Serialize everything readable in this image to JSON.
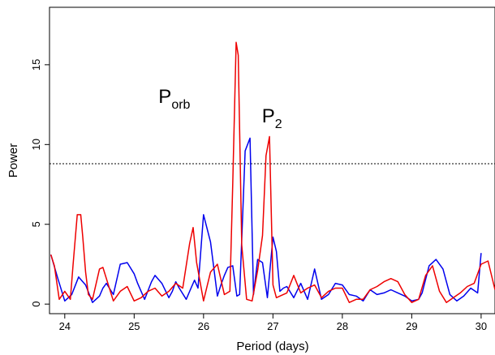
{
  "chart_data": {
    "type": "line",
    "xlabel": "Period (days)",
    "ylabel": "Power",
    "xlim": [
      23.78,
      30.2
    ],
    "ylim": [
      -0.6,
      18.6
    ],
    "x_ticks": [
      24,
      25,
      26,
      27,
      28,
      29,
      30
    ],
    "y_ticks": [
      0,
      5,
      10,
      15
    ],
    "grid": false,
    "threshold": {
      "value": 8.8,
      "style": "dotted",
      "color": "#000000"
    },
    "annotations": [
      {
        "base": "P",
        "sub": "orb",
        "x": 25.35,
        "y": 12.6
      },
      {
        "base": "P",
        "sub": "2",
        "x": 26.84,
        "y": 11.4
      }
    ],
    "series": [
      {
        "color": "#0000ee",
        "x": [
          23.8,
          23.9,
          24.0,
          24.1,
          24.2,
          24.3,
          24.4,
          24.5,
          24.55,
          24.6,
          24.7,
          24.8,
          24.9,
          25.0,
          25.05,
          25.15,
          25.25,
          25.3,
          25.4,
          25.5,
          25.55,
          25.6,
          25.65,
          25.75,
          25.82,
          25.87,
          25.92,
          26.0,
          26.1,
          26.2,
          26.25,
          26.3,
          26.35,
          26.42,
          26.48,
          26.52,
          26.6,
          26.67,
          26.72,
          26.78,
          26.85,
          26.92,
          27.0,
          27.05,
          27.1,
          27.15,
          27.2,
          27.3,
          27.4,
          27.5,
          27.6,
          27.7,
          27.8,
          27.9,
          28.0,
          28.1,
          28.2,
          28.3,
          28.4,
          28.5,
          28.6,
          28.7,
          28.8,
          28.9,
          29.0,
          29.1,
          29.15,
          29.25,
          29.35,
          29.45,
          29.55,
          29.65,
          29.75,
          29.85,
          29.95,
          30.0
        ],
        "y": [
          3.1,
          1.6,
          0.2,
          0.6,
          1.7,
          1.2,
          0.1,
          0.5,
          1.0,
          1.3,
          0.6,
          2.5,
          2.6,
          1.9,
          1.3,
          0.3,
          1.4,
          1.8,
          1.3,
          0.4,
          0.8,
          1.4,
          1.0,
          0.3,
          1.0,
          1.5,
          1.0,
          5.6,
          3.9,
          0.5,
          1.2,
          1.8,
          2.3,
          2.4,
          0.5,
          0.6,
          9.6,
          10.4,
          0.6,
          2.8,
          2.6,
          0.4,
          4.2,
          3.3,
          0.8,
          1.0,
          1.1,
          0.4,
          1.3,
          0.3,
          2.2,
          0.3,
          0.6,
          1.3,
          1.2,
          0.6,
          0.5,
          0.2,
          0.9,
          0.6,
          0.7,
          0.9,
          0.7,
          0.5,
          0.2,
          0.3,
          0.7,
          2.4,
          2.8,
          2.2,
          0.6,
          0.2,
          0.5,
          1.0,
          0.7,
          3.2
        ]
      },
      {
        "color": "#ee0000",
        "x": [
          23.8,
          23.85,
          23.92,
          24.0,
          24.08,
          24.12,
          24.18,
          24.23,
          24.26,
          24.3,
          24.34,
          24.4,
          24.5,
          24.55,
          24.6,
          24.7,
          24.8,
          24.9,
          25.0,
          25.1,
          25.2,
          25.3,
          25.4,
          25.5,
          25.6,
          25.7,
          25.8,
          25.85,
          25.9,
          26.0,
          26.1,
          26.2,
          26.3,
          26.38,
          26.42,
          26.47,
          26.5,
          26.55,
          26.62,
          26.7,
          26.78,
          26.85,
          26.9,
          26.95,
          27.0,
          27.05,
          27.1,
          27.2,
          27.3,
          27.4,
          27.5,
          27.6,
          27.7,
          27.8,
          27.9,
          28.0,
          28.1,
          28.2,
          28.3,
          28.4,
          28.5,
          28.6,
          28.7,
          28.8,
          28.9,
          29.0,
          29.1,
          29.2,
          29.3,
          29.4,
          29.5,
          29.6,
          29.7,
          29.8,
          29.9,
          30.0,
          30.1,
          30.2
        ],
        "y": [
          3.1,
          2.4,
          0.3,
          0.8,
          0.3,
          2.5,
          5.6,
          5.6,
          4.2,
          2.0,
          0.6,
          0.3,
          2.2,
          2.3,
          1.6,
          0.2,
          0.8,
          1.1,
          0.2,
          0.4,
          0.8,
          1.0,
          0.5,
          0.8,
          1.3,
          1.0,
          3.8,
          4.8,
          2.6,
          0.2,
          2.0,
          2.5,
          0.6,
          0.8,
          7.5,
          16.4,
          15.6,
          3.7,
          0.3,
          0.2,
          2.1,
          4.3,
          9.3,
          10.5,
          1.2,
          0.4,
          0.5,
          0.7,
          1.8,
          0.7,
          1.0,
          1.2,
          0.4,
          0.8,
          1.0,
          1.0,
          0.1,
          0.3,
          0.3,
          0.9,
          1.1,
          1.4,
          1.6,
          1.4,
          0.6,
          0.1,
          0.3,
          1.8,
          2.4,
          0.8,
          0.1,
          0.4,
          0.7,
          1.1,
          1.3,
          2.5,
          2.7,
          0.9
        ]
      }
    ]
  }
}
